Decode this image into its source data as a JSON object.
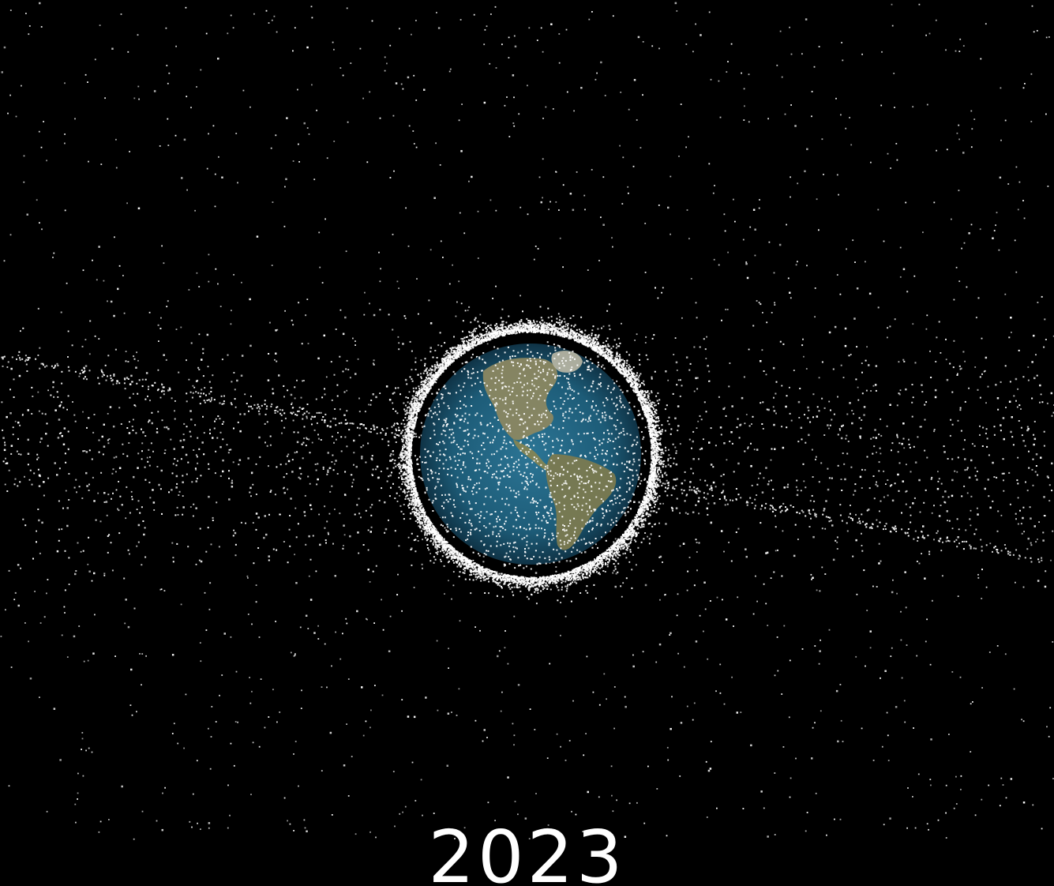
{
  "scene": {
    "year": "2023",
    "background_color": "#000000",
    "debris_color": "#ffffff",
    "earth_ocean_color": "#1f5f7a",
    "earth_land_color": "#8a8660",
    "text_color": "#ffffff"
  }
}
